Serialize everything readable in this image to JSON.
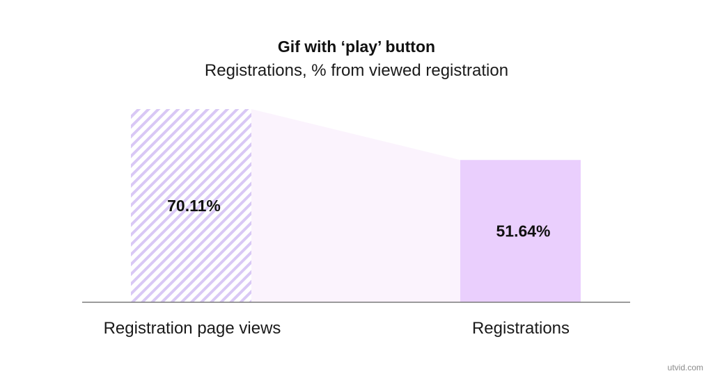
{
  "chart_data": {
    "type": "bar",
    "title": "Gif with ‘play’ button",
    "subtitle": "Registrations, % from viewed registration",
    "categories": [
      "Registration page views",
      "Registrations"
    ],
    "values": [
      70.11,
      51.64
    ],
    "value_labels": [
      "70.11%",
      "51.64%"
    ],
    "unit": "%",
    "ylim": [
      0,
      70.11
    ],
    "grid": false,
    "legend": "none",
    "colors": {
      "bar_hatch": "#d9c8f5",
      "bar_solid": "#eacffd",
      "connector": "#fbf3fd",
      "axis": "#7a7a7a"
    }
  },
  "watermark": "utvid.com"
}
